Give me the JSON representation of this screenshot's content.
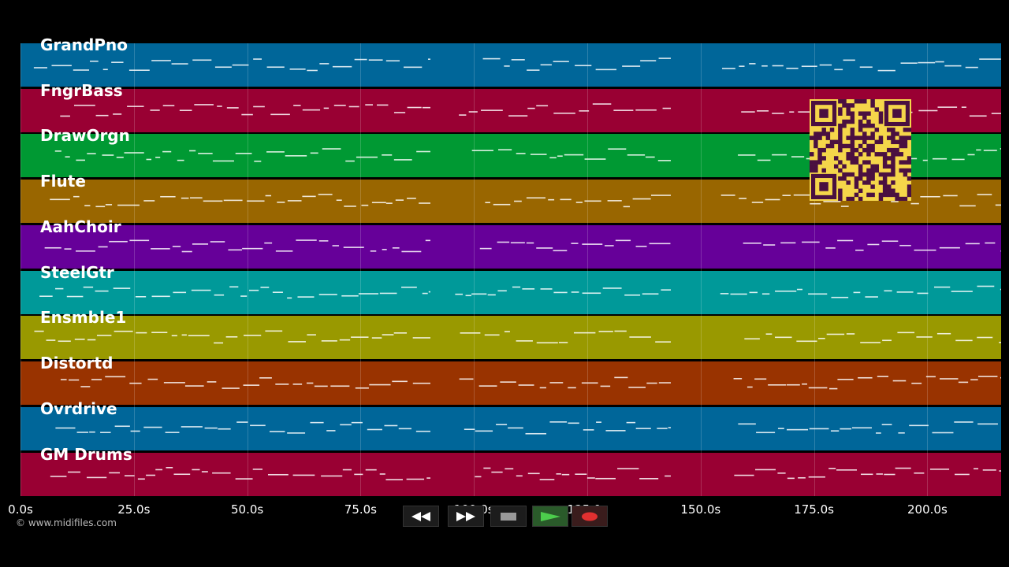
{
  "tracks": [
    {
      "name": "GrandPno",
      "color": "#006699"
    },
    {
      "name": "FngrBass",
      "color": "#990033"
    },
    {
      "name": "DrawOrgn",
      "color": "#009933"
    },
    {
      "name": "Flute",
      "color": "#996600"
    },
    {
      "name": "AahChoir",
      "color": "#660099"
    },
    {
      "name": "SteelGtr",
      "color": "#009999"
    },
    {
      "name": "Ensmble1",
      "color": "#999900"
    },
    {
      "name": "Distortd",
      "color": "#993300"
    },
    {
      "name": "Ovrdrive",
      "color": "#006699"
    },
    {
      "name": "GM Drums",
      "color": "#990033"
    }
  ],
  "timeline": {
    "ticks": [
      "0.0s",
      "25.0s",
      "50.0s",
      "75.0s",
      "100.0s",
      "125.0s",
      "150.0s",
      "175.0s",
      "200.0s"
    ]
  },
  "copyright": "© www.midifiles.com",
  "transport": {
    "buttons": [
      {
        "name": "rewind-button",
        "icon": "rewind-icon"
      },
      {
        "name": "fast-forward-button",
        "icon": "fast-forward-icon"
      },
      {
        "name": "stop-button",
        "icon": "stop-icon"
      },
      {
        "name": "play-button",
        "icon": "play-icon"
      },
      {
        "name": "record-button",
        "icon": "record-icon"
      }
    ]
  },
  "qr_code": {
    "icon": "qr-code-icon",
    "color": "#f5d64a"
  }
}
